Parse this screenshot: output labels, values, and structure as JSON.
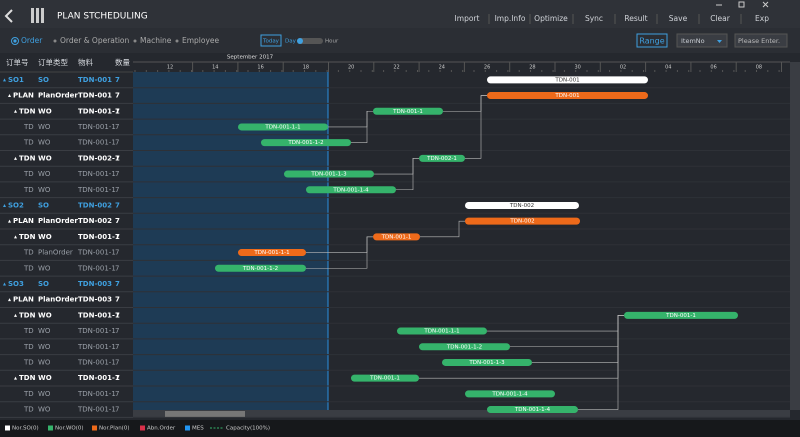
{
  "header": {
    "title": "PLAN  STCHEDULING",
    "menu": [
      "Import",
      "Imp.Info",
      "Optimize",
      "Sync",
      "Result",
      "Save",
      "Clear",
      "Exp"
    ]
  },
  "toolbar": {
    "tabs": [
      "Order",
      "Order & Operation",
      "Machine",
      "Employee"
    ],
    "today": "Today",
    "day": "Day",
    "hour": "Hour",
    "range": "Range",
    "select": "ItemNo",
    "search": "Please Enter."
  },
  "table": {
    "columns": [
      "订单号",
      "订单类型",
      "物料",
      "数量"
    ],
    "rows": [
      [
        "SO1",
        "SO",
        "TDN-001",
        7
      ],
      [
        "PLAN",
        "PlanOrder",
        "TDN-001",
        7
      ],
      [
        "TDN",
        "WO",
        "TDN-001-1",
        7
      ],
      [
        "TD",
        "WO",
        "TDN-001-1",
        7
      ],
      [
        "TD",
        "WO",
        "TDN-001-1",
        7
      ],
      [
        "TDN",
        "WO",
        "TDN-002-1",
        7
      ],
      [
        "TD",
        "WO",
        "TDN-001-1",
        7
      ],
      [
        "TD",
        "WO",
        "TDN-001-1",
        7
      ],
      [
        "SO2",
        "SO",
        "TDN-002",
        7
      ],
      [
        "PLAN",
        "PlanOrder",
        "TDN-002",
        7
      ],
      [
        "TDN",
        "WO",
        "TDN-001-1",
        7
      ],
      [
        "TD",
        "PlanOrder",
        "TDN-001-1",
        7
      ],
      [
        "TD",
        "WO",
        "TDN-001-1",
        7
      ],
      [
        "SO3",
        "SO",
        "TDN-003",
        7
      ],
      [
        "PLAN",
        "PlanOrder",
        "TDN-003",
        7
      ],
      [
        "TDN",
        "WO",
        "TDN-001-1",
        7
      ],
      [
        "TD",
        "WO",
        "TDN-001-1",
        7
      ],
      [
        "TD",
        "WO",
        "TDN-001-1",
        7
      ],
      [
        "TD",
        "WO",
        "TDN-001-1",
        7
      ],
      [
        "TDN",
        "WO",
        "TDN-001-1",
        7
      ],
      [
        "TD",
        "WO",
        "TDN-001-1",
        7
      ],
      [
        "TD",
        "WO",
        "TDN-001-1",
        7
      ]
    ]
  },
  "timeline": {
    "month": "September 2017",
    "days": [
      "12",
      "14",
      "16",
      "18",
      "20",
      "22",
      "24",
      "26",
      "28",
      "30",
      "02",
      "04",
      "06",
      "08"
    ]
  },
  "bars": [
    {
      "label": "TDN-001"
    },
    {
      "label": "TDN-001"
    },
    {
      "label": "TDN-001-1"
    },
    {
      "label": "TDN-001-1-1"
    },
    {
      "label": "TDN-001-1-2"
    },
    {
      "label": "TDN-002-1"
    },
    {
      "label": "TDN-001-1-3"
    },
    {
      "label": "TDN-001-1-4"
    },
    {
      "label": "TDN-002"
    },
    {
      "label": "TDN-002"
    },
    {
      "label": "TDN-001-1"
    },
    {
      "label": "TDN-001-1-1"
    },
    {
      "label": "TDN-001-1-2"
    },
    {
      "label": "TDN-001-1"
    },
    {
      "label": "TDN-001-1-1"
    },
    {
      "label": "TDN-001-1-2"
    },
    {
      "label": "TDN-001-1-3"
    },
    {
      "label": "TDN-001-1"
    },
    {
      "label": "TDN-001-1-4"
    },
    {
      "label": "TDN-001-1-4"
    }
  ],
  "legend": [
    {
      "label": "Nor.SO(0)",
      "color": "#ffffff"
    },
    {
      "label": "Nor.WO(0)",
      "color": "#35b36b"
    },
    {
      "label": "Nor.Plan(0)",
      "color": "#ee6a1a"
    },
    {
      "label": "Abn.Order",
      "color": "#d9304a"
    },
    {
      "label": "MES",
      "color": "#2196f3"
    },
    {
      "label": "Capacity(100%)",
      "color": "#35b36b"
    }
  ]
}
